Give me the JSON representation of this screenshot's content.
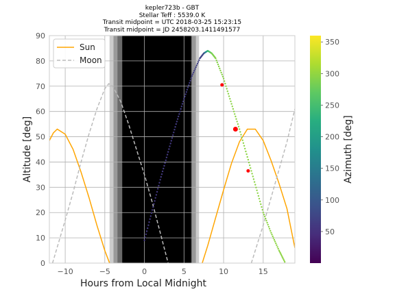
{
  "chart_data": {
    "type": "line",
    "title_lines": [
      "kepler723b -  GBT",
      "Stellar Teff : 5539.0 K",
      "Transit midpoint = UTC 2018-03-25 15:23:15",
      "Transit midpoint = JD 2458203.1411491577"
    ],
    "xlabel": "Hours from Local Midnight",
    "ylabel": "Altitude [deg]",
    "xlim": [
      -12,
      19
    ],
    "ylim": [
      0,
      90
    ],
    "xticks": [
      -10,
      -5,
      0,
      5,
      10,
      15
    ],
    "xtick_labels": [
      "−10",
      "−5",
      "0",
      "5",
      "10",
      "15"
    ],
    "yticks": [
      0,
      10,
      20,
      30,
      40,
      50,
      60,
      70,
      80,
      90
    ],
    "ytick_labels": [
      "0",
      "10",
      "20",
      "30",
      "40",
      "50",
      "60",
      "70",
      "80",
      "90"
    ],
    "grid": true,
    "legend_position": "upper-left",
    "legend": [
      {
        "label": "Sun",
        "color": "#ffa500",
        "style": "solid"
      },
      {
        "label": "Moon",
        "color": "#bbbbbb",
        "style": "dashed"
      }
    ],
    "twilight_bands": [
      {
        "x0": -4.4,
        "x1": 6.9,
        "color": "#cccccc"
      },
      {
        "x0": -3.9,
        "x1": 6.5,
        "color": "#999999"
      },
      {
        "x0": -3.4,
        "x1": 6.0,
        "color": "#6a6a6a"
      },
      {
        "x0": -2.8,
        "x1": 5.9,
        "color": "#000000"
      }
    ],
    "series": [
      {
        "name": "Sun",
        "color": "#ffa500",
        "style": "solid",
        "segments": [
          [
            [
              -12.0,
              48.5
            ],
            [
              -11.5,
              51.5
            ],
            [
              -11.0,
              53.0
            ],
            [
              -10.0,
              51.0
            ],
            [
              -9.0,
              45.0
            ],
            [
              -8.0,
              36.0
            ],
            [
              -7.0,
              26.0
            ],
            [
              -6.0,
              15.0
            ],
            [
              -5.0,
              5.0
            ],
            [
              -4.4,
              0.0
            ]
          ],
          [
            [
              7.3,
              0.0
            ],
            [
              8.0,
              7.0
            ],
            [
              9.0,
              18.0
            ],
            [
              10.0,
              29.0
            ],
            [
              11.0,
              39.5
            ],
            [
              12.0,
              48.0
            ],
            [
              13.0,
              53.0
            ],
            [
              14.0,
              53.0
            ],
            [
              15.0,
              48.5
            ],
            [
              16.0,
              40.5
            ],
            [
              17.0,
              31.5
            ],
            [
              18.0,
              21.5
            ],
            [
              19.0,
              6.0
            ]
          ]
        ]
      },
      {
        "name": "Moon",
        "color": "#bbbbbb",
        "style": "dashed",
        "segments": [
          [
            [
              -11.6,
              0.0
            ],
            [
              -10.0,
              17.0
            ],
            [
              -9.0,
              28.0
            ],
            [
              -8.0,
              40.0
            ],
            [
              -7.0,
              51.0
            ],
            [
              -6.0,
              61.0
            ],
            [
              -5.0,
              69.0
            ],
            [
              -4.5,
              71.0
            ],
            [
              -4.0,
              70.0
            ],
            [
              -3.0,
              64.0
            ],
            [
              -2.0,
              55.0
            ],
            [
              -1.0,
              45.0
            ],
            [
              0.0,
              35.0
            ],
            [
              1.0,
              24.0
            ],
            [
              2.0,
              12.0
            ],
            [
              3.0,
              0.0
            ]
          ],
          [
            [
              13.5,
              0.0
            ],
            [
              15.0,
              15.0
            ],
            [
              16.0,
              26.0
            ],
            [
              17.0,
              37.0
            ],
            [
              18.0,
              48.0
            ],
            [
              19.0,
              61.0
            ]
          ]
        ]
      }
    ],
    "target_track": {
      "colormap": "viridis",
      "points": [
        {
          "x": 0.0,
          "y": 9.0,
          "azimuth": 60
        },
        {
          "x": 1.0,
          "y": 21.0,
          "azimuth": 60
        },
        {
          "x": 2.0,
          "y": 33.0,
          "azimuth": 60
        },
        {
          "x": 3.0,
          "y": 44.0,
          "azimuth": 61
        },
        {
          "x": 4.0,
          "y": 55.0,
          "azimuth": 62
        },
        {
          "x": 5.0,
          "y": 65.0,
          "azimuth": 63
        },
        {
          "x": 6.0,
          "y": 74.0,
          "azimuth": 65
        },
        {
          "x": 7.0,
          "y": 81.0,
          "azimuth": 70
        },
        {
          "x": 7.5,
          "y": 83.0,
          "azimuth": 80
        },
        {
          "x": 8.0,
          "y": 84.0,
          "azimuth": 240
        },
        {
          "x": 8.5,
          "y": 83.0,
          "azimuth": 285
        },
        {
          "x": 9.0,
          "y": 81.0,
          "azimuth": 292
        },
        {
          "x": 10.0,
          "y": 73.0,
          "azimuth": 295
        },
        {
          "x": 11.0,
          "y": 63.0,
          "azimuth": 296
        },
        {
          "x": 12.0,
          "y": 53.0,
          "azimuth": 296
        },
        {
          "x": 13.0,
          "y": 42.0,
          "azimuth": 296
        },
        {
          "x": 14.0,
          "y": 31.0,
          "azimuth": 296
        },
        {
          "x": 15.0,
          "y": 20.0,
          "azimuth": 297
        },
        {
          "x": 16.0,
          "y": 12.0,
          "azimuth": 297
        },
        {
          "x": 17.0,
          "y": 5.0,
          "azimuth": 297
        },
        {
          "x": 17.8,
          "y": 0.0,
          "azimuth": 297
        }
      ]
    },
    "transit_markers": [
      {
        "label": "ingress",
        "x": 9.8,
        "y": 70.5,
        "color": "#ff0000"
      },
      {
        "label": "midpoint",
        "x": 11.5,
        "y": 53.0,
        "color": "#ff0000"
      },
      {
        "label": "egress",
        "x": 13.1,
        "y": 36.5,
        "color": "#ff0000"
      }
    ],
    "colorbar": {
      "label": "Azimuth [deg]",
      "range": [
        0,
        360
      ],
      "ticks": [
        50,
        100,
        150,
        200,
        250,
        300,
        350
      ],
      "tick_labels": [
        "50",
        "100",
        "150",
        "200",
        "250",
        "300",
        "350"
      ]
    }
  }
}
